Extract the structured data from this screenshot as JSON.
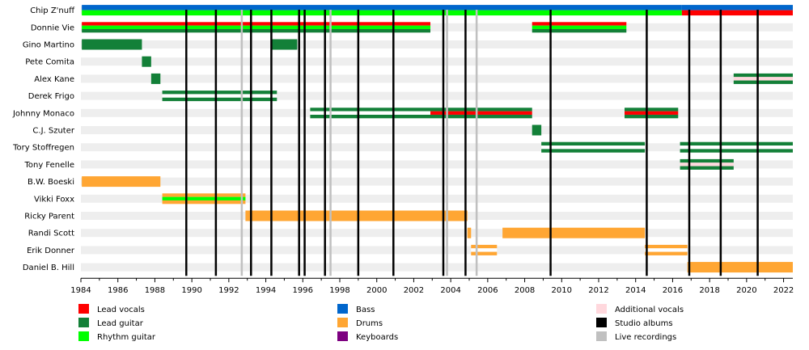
{
  "chart_data": {
    "type": "timeline",
    "title": "",
    "xlim": [
      1984,
      2022.5
    ],
    "xticks": [
      "1984",
      "1986",
      "1988",
      "1990",
      "1992",
      "1994",
      "1996",
      "1998",
      "2000",
      "2002",
      "2004",
      "2006",
      "2008",
      "2010",
      "2012",
      "2014",
      "2016",
      "2018",
      "2020",
      "2022"
    ],
    "roles": {
      "lead_vocals": "#ff0000",
      "lead_guitar": "#138038",
      "rhythm_guitar": "#00ff00",
      "bass": "#0066cc",
      "drums": "#ffa633",
      "keyboards": "#7d0080",
      "additional_vocals": "#ffd8dd",
      "studio": "#000000",
      "live": "#c0c0c0"
    },
    "members": [
      {
        "name": "Chip Z'nuff",
        "bars": [
          {
            "start": 1984.05,
            "end": 2016.5,
            "bands": [
              "bass",
              "rhythm_guitar"
            ]
          },
          {
            "start": 2016.5,
            "end": 2022.5,
            "bands": [
              "bass",
              "lead_vocals"
            ]
          }
        ]
      },
      {
        "name": "Donnie Vie",
        "bars": [
          {
            "start": 1984.05,
            "end": 2002.9,
            "bands": [
              "lead_vocals",
              "rhythm_guitar",
              "lead_guitar"
            ]
          },
          {
            "start": 2008.4,
            "end": 2013.5,
            "bands": [
              "lead_vocals",
              "rhythm_guitar",
              "lead_guitar"
            ]
          }
        ]
      },
      {
        "name": "Gino Martino",
        "bars": [
          {
            "start": 1984.05,
            "end": 1987.3,
            "bands": [
              "lead_guitar"
            ]
          },
          {
            "start": 1994.3,
            "end": 1995.7,
            "bands": [
              "lead_guitar"
            ]
          }
        ]
      },
      {
        "name": "Pete Comita",
        "bars": [
          {
            "start": 1987.3,
            "end": 1987.8,
            "bands": [
              "lead_guitar"
            ]
          }
        ]
      },
      {
        "name": "Alex Kane",
        "bars": [
          {
            "start": 1987.8,
            "end": 1988.3,
            "bands": [
              "lead_guitar"
            ]
          },
          {
            "start": 2019.3,
            "end": 2022.5,
            "bands": [
              "lead_guitar",
              "additional_vocals",
              "lead_guitar"
            ]
          }
        ]
      },
      {
        "name": "Derek Frigo",
        "bars": [
          {
            "start": 1988.4,
            "end": 1994.6,
            "bands": [
              "lead_guitar",
              "white",
              "lead_guitar"
            ]
          }
        ]
      },
      {
        "name": "Johnny Monaco",
        "bars": [
          {
            "start": 1996.4,
            "end": 2002.9,
            "bands": [
              "lead_guitar",
              "white",
              "lead_guitar"
            ]
          },
          {
            "start": 2002.9,
            "end": 2008.4,
            "bands": [
              "lead_guitar",
              "lead_vocals",
              "lead_guitar"
            ]
          },
          {
            "start": 2013.4,
            "end": 2016.3,
            "bands": [
              "lead_guitar",
              "lead_vocals",
              "lead_guitar"
            ]
          }
        ]
      },
      {
        "name": "C.J. Szuter",
        "bars": [
          {
            "start": 2008.4,
            "end": 2008.9,
            "bands": [
              "lead_guitar"
            ]
          }
        ]
      },
      {
        "name": "Tory Stoffregen",
        "bars": [
          {
            "start": 2008.9,
            "end": 2014.5,
            "bands": [
              "lead_guitar",
              "white",
              "lead_guitar"
            ]
          },
          {
            "start": 2016.4,
            "end": 2022.5,
            "bands": [
              "lead_guitar",
              "white",
              "lead_guitar"
            ]
          }
        ]
      },
      {
        "name": "Tony Fenelle",
        "bars": [
          {
            "start": 2016.4,
            "end": 2019.3,
            "bands": [
              "lead_guitar",
              "additional_vocals",
              "lead_guitar"
            ]
          }
        ]
      },
      {
        "name": "B.W. Boeski",
        "bars": [
          {
            "start": 1984.05,
            "end": 1988.3,
            "bands": [
              "drums"
            ]
          }
        ]
      },
      {
        "name": "Vikki Foxx",
        "bars": [
          {
            "start": 1988.4,
            "end": 1992.9,
            "bands": [
              "drums",
              "rhythm_guitar",
              "drums"
            ]
          }
        ]
      },
      {
        "name": "Ricky Parent",
        "bars": [
          {
            "start": 1992.9,
            "end": 2004.9,
            "bands": [
              "drums"
            ]
          }
        ]
      },
      {
        "name": "Randi Scott",
        "bars": [
          {
            "start": 2004.9,
            "end": 2005.1,
            "bands": [
              "drums"
            ]
          },
          {
            "start": 2006.8,
            "end": 2014.5,
            "bands": [
              "drums"
            ]
          }
        ]
      },
      {
        "name": "Erik Donner",
        "bars": [
          {
            "start": 2005.1,
            "end": 2006.5,
            "bands": [
              "drums",
              "white",
              "drums"
            ]
          },
          {
            "start": 2014.5,
            "end": 2016.8,
            "bands": [
              "drums",
              "white",
              "drums"
            ]
          }
        ]
      },
      {
        "name": "Daniel B. Hill",
        "bars": [
          {
            "start": 2016.8,
            "end": 2022.5,
            "bands": [
              "drums"
            ]
          }
        ]
      }
    ],
    "studio_albums": [
      1989.7,
      1991.3,
      1993.2,
      1994.3,
      1995.8,
      1996.1,
      1997.2,
      1999.0,
      2000.9,
      2003.6,
      2004.8,
      2009.4,
      2014.6,
      2016.9,
      2018.6,
      2020.6
    ],
    "live_recordings": [
      1992.7,
      1997.5,
      2003.8,
      2005.4
    ],
    "legend": [
      {
        "label": "Lead vocals",
        "role": "lead_vocals"
      },
      {
        "label": "Lead guitar",
        "role": "lead_guitar"
      },
      {
        "label": "Rhythm guitar",
        "role": "rhythm_guitar"
      },
      {
        "label": "Bass",
        "role": "bass"
      },
      {
        "label": "Drums",
        "role": "drums"
      },
      {
        "label": "Keyboards",
        "role": "keyboards"
      },
      {
        "label": "Additional vocals",
        "role": "additional_vocals"
      },
      {
        "label": "Studio albums",
        "role": "studio"
      },
      {
        "label": "Live recordings",
        "role": "live"
      }
    ]
  }
}
